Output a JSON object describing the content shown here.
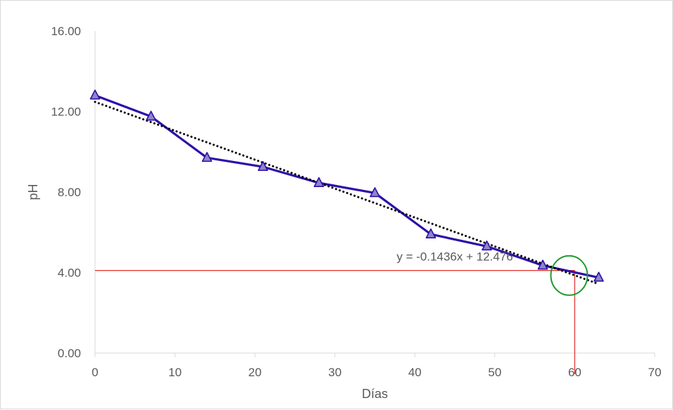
{
  "chart_data": {
    "type": "line",
    "title": "",
    "xlabel": "Días",
    "ylabel": "pH",
    "xlim": [
      0,
      70
    ],
    "ylim": [
      0,
      16
    ],
    "x_ticks": [
      0,
      10,
      20,
      30,
      40,
      50,
      60,
      70
    ],
    "y_ticks": [
      0,
      4,
      8,
      12,
      16
    ],
    "x_tick_labels": [
      "0",
      "10",
      "20",
      "30",
      "40",
      "50",
      "60",
      "70"
    ],
    "y_tick_labels": [
      "0.00",
      "4.00",
      "8.00",
      "12.00",
      "16.00"
    ],
    "grid": false,
    "legend": "none",
    "series": [
      {
        "x": [
          0,
          7,
          14,
          21,
          28,
          35,
          42,
          49,
          56,
          63
        ],
        "y": [
          12.8,
          11.75,
          9.7,
          9.25,
          8.45,
          7.95,
          5.9,
          5.3,
          4.35,
          3.75
        ],
        "color": "#2e0fa8",
        "marker": "triangle",
        "marker_fill": "#8e86c8"
      }
    ],
    "trendline": {
      "slope": -0.1436,
      "intercept": 12.476,
      "x_range": [
        0,
        63
      ],
      "style": "dotted",
      "color": "#000000",
      "equation_label": "y = -0.1436x + 12.476",
      "equation_position": {
        "x": 45,
        "y": 4.6
      }
    },
    "annotations": {
      "reference_y": 4.1,
      "reference_x": 60,
      "reference_color": "#e0302b",
      "circle_center": [
        59.3,
        3.85
      ],
      "circle_color": "#1e9a2e"
    }
  }
}
